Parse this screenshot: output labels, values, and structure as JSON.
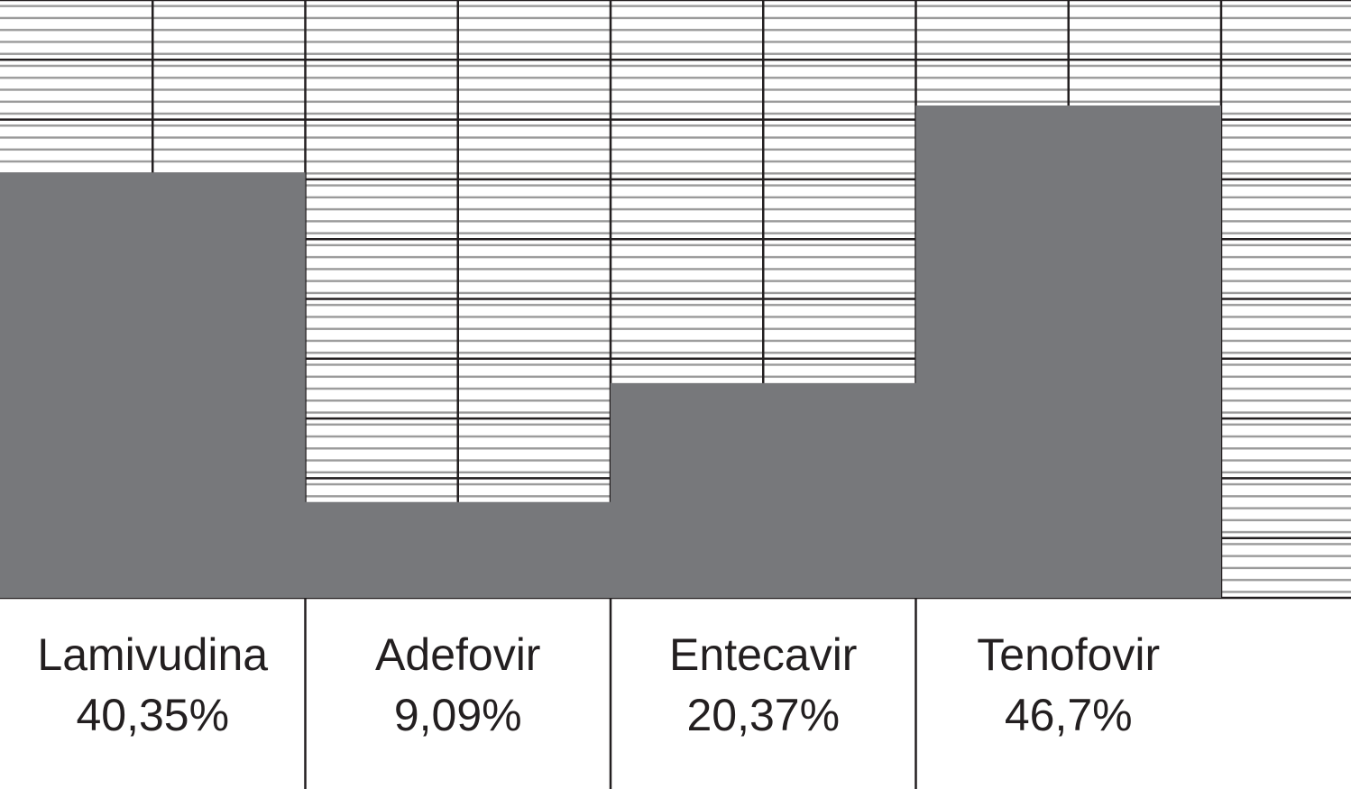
{
  "chart_data": {
    "type": "bar",
    "categories": [
      "Lamivudina",
      "Adefovir",
      "Entecavir",
      "Tenofovir"
    ],
    "values": [
      40.35,
      9.09,
      20.37,
      46.7
    ],
    "value_labels": [
      "40,35%",
      "9,09%",
      "20,37%",
      "46,7%"
    ],
    "color": "#77787b",
    "grid": true
  }
}
